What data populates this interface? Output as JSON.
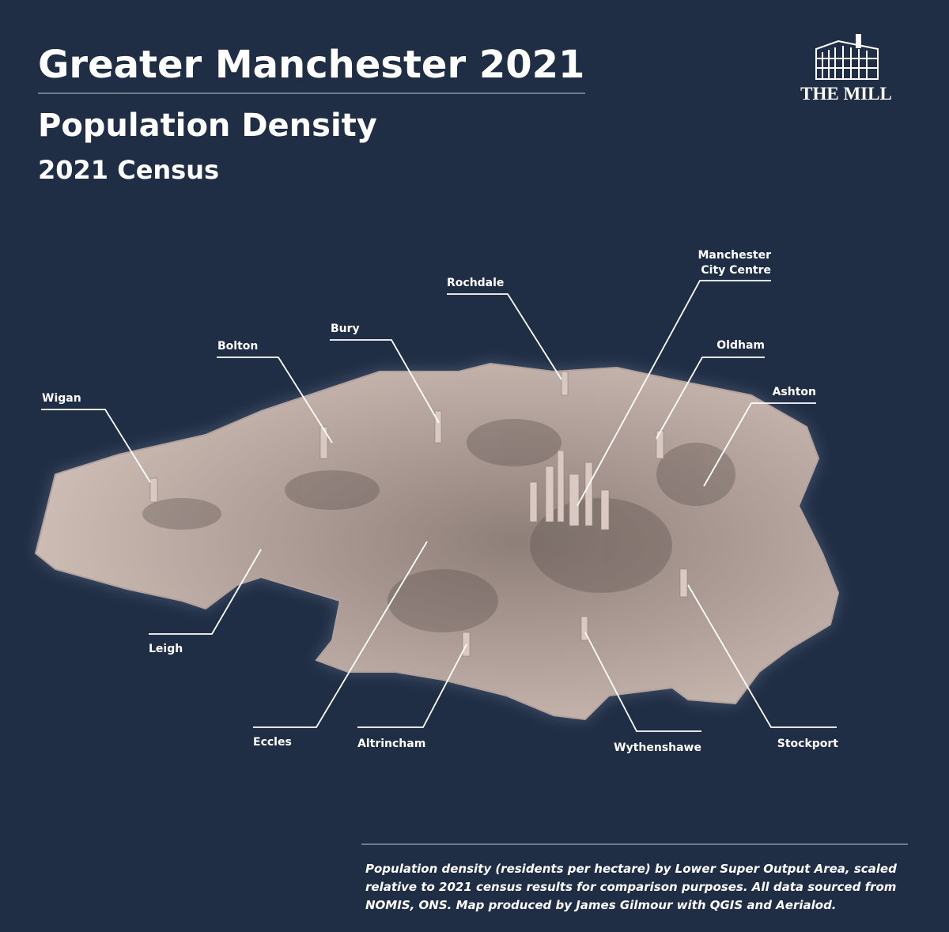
{
  "header": {
    "title": "Greater Manchester 2021",
    "subtitle": "Population Density",
    "subtitle2": "2021 Census"
  },
  "logo": {
    "text": "THE MILL"
  },
  "map": {
    "labels": [
      {
        "lines": [
          "Wigan"
        ]
      },
      {
        "lines": [
          "Bolton"
        ]
      },
      {
        "lines": [
          "Bury"
        ]
      },
      {
        "lines": [
          "Rochdale"
        ]
      },
      {
        "lines": [
          "Manchester",
          "City Centre"
        ]
      },
      {
        "lines": [
          "Oldham"
        ]
      },
      {
        "lines": [
          "Ashton"
        ]
      },
      {
        "lines": [
          "Leigh"
        ]
      },
      {
        "lines": [
          "Eccles"
        ]
      },
      {
        "lines": [
          "Altrincham"
        ]
      },
      {
        "lines": [
          "Wythenshawe"
        ]
      },
      {
        "lines": [
          "Stockport"
        ]
      }
    ]
  },
  "footnote": "Population density (residents per hectare) by Lower Super Output Area, scaled relative to 2021 census results for comparison purposes. All data sourced from NOMIS, ONS. Map produced by James Gilmour with QGIS and Aerialod."
}
